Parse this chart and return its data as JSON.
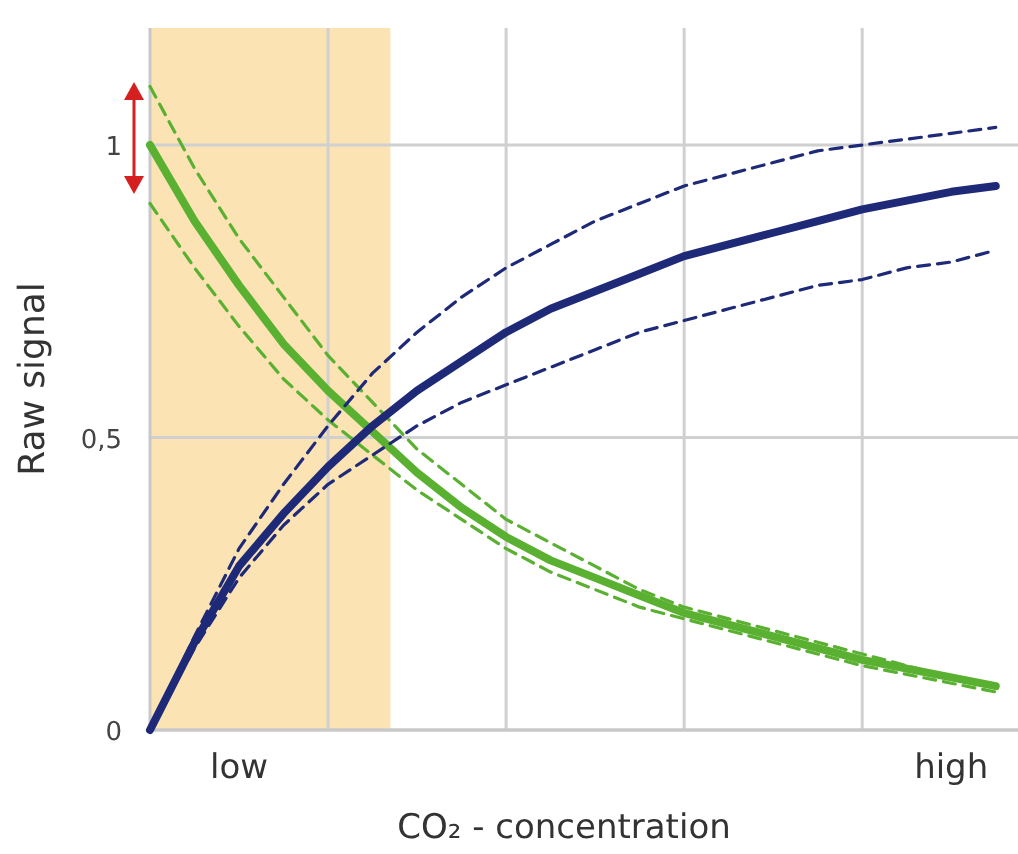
{
  "chart_data": {
    "type": "line",
    "xlabel": "CO₂ - concentration",
    "ylabel": "Raw signal",
    "categories": [
      null,
      null,
      "low",
      null,
      null,
      null,
      null,
      null,
      null,
      null,
      null,
      null,
      null,
      null,
      null,
      null,
      null,
      null,
      "high",
      null
    ],
    "ylim": [
      0,
      1.2
    ],
    "yticks": [
      0,
      {
        "value": 0.5,
        "label": "0,5"
      },
      1
    ],
    "grid": true,
    "marker": "none",
    "series": [
      {
        "color": "#5ab030",
        "line_style": "solid",
        "values": [
          1,
          0.87,
          0.76,
          0.66,
          0.58,
          0.51,
          0.44,
          0.38,
          0.33,
          0.29,
          0.26,
          0.23,
          0.2,
          0.18,
          0.16,
          0.14,
          0.12,
          0.105,
          0.09,
          0.075
        ]
      },
      {
        "color": "#5ab030",
        "line_style": "dashed",
        "values": [
          1.1,
          0.96,
          0.84,
          0.74,
          0.64,
          0.56,
          0.48,
          0.42,
          0.36,
          0.32,
          0.28,
          0.24,
          0.21,
          0.19,
          0.17,
          0.15,
          0.13,
          0.11,
          0.09,
          0.075
        ]
      },
      {
        "color": "#5ab030",
        "line_style": "dashed",
        "values": [
          0.9,
          0.79,
          0.69,
          0.6,
          0.53,
          0.47,
          0.41,
          0.36,
          0.31,
          0.27,
          0.24,
          0.21,
          0.19,
          0.17,
          0.15,
          0.13,
          0.11,
          0.095,
          0.08,
          0.065
        ]
      },
      {
        "color": "#1e2a78",
        "line_style": "solid",
        "values": [
          0,
          0.15,
          0.28,
          0.37,
          0.45,
          0.52,
          0.58,
          0.63,
          0.68,
          0.72,
          0.75,
          0.78,
          0.81,
          0.83,
          0.85,
          0.87,
          0.89,
          0.905,
          0.92,
          0.93
        ]
      },
      {
        "color": "#1e2a78",
        "line_style": "dashed",
        "values": [
          0,
          0.16,
          0.31,
          0.42,
          0.52,
          0.61,
          0.68,
          0.74,
          0.79,
          0.83,
          0.87,
          0.9,
          0.93,
          0.95,
          0.97,
          0.99,
          1.0,
          1.01,
          1.02,
          1.03
        ]
      },
      {
        "color": "#1e2a78",
        "line_style": "dashed",
        "values": [
          0,
          0.14,
          0.26,
          0.35,
          0.42,
          0.47,
          0.52,
          0.56,
          0.59,
          0.62,
          0.65,
          0.68,
          0.7,
          0.72,
          0.74,
          0.76,
          0.77,
          0.79,
          0.8,
          0.82
        ]
      }
    ]
  }
}
